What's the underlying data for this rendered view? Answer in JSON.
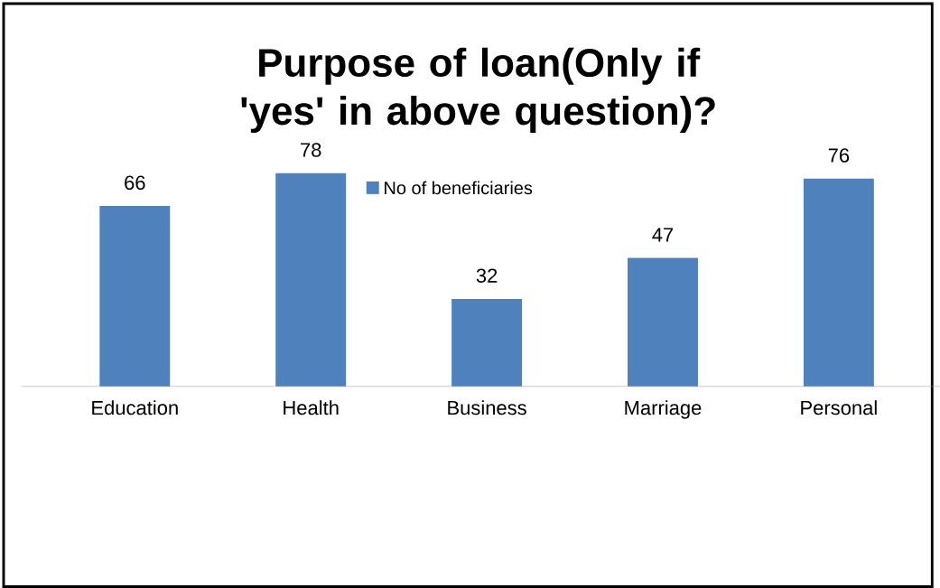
{
  "chart_data": {
    "type": "bar",
    "title": "Purpose of loan(Only if 'yes' in above question)?",
    "categories": [
      "Education",
      "Health",
      "Business",
      "Marriage",
      "Personal"
    ],
    "series": [
      {
        "name": "No of beneficiaries",
        "color": "#4f81bd",
        "values": [
          66,
          78,
          32,
          47,
          76
        ]
      }
    ],
    "data_labels": true,
    "legend": "top"
  }
}
